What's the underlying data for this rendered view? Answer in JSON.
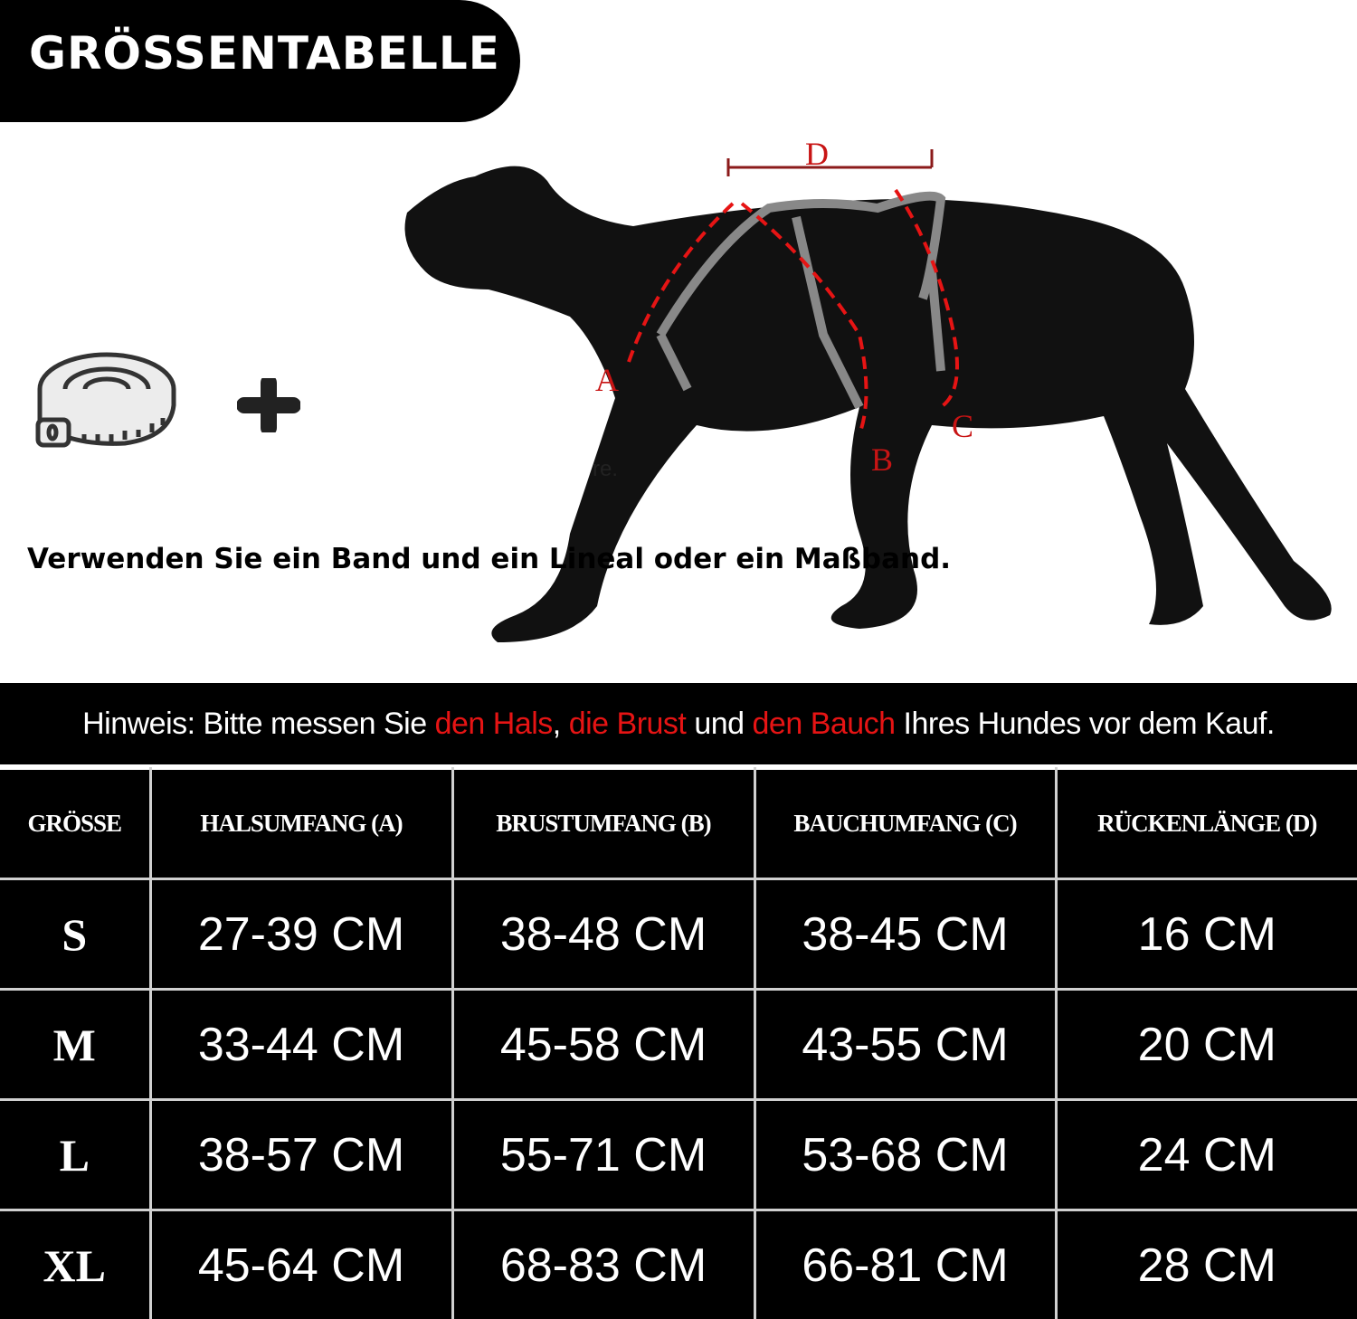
{
  "title": "GRÖSSENTABELLE",
  "usage_text": "Verwenden Sie ein Band und ein Lineal oder ein Maßband.",
  "stray_text": "re.",
  "icons": {
    "tape": "measuring-tape-icon",
    "plus": "plus-icon"
  },
  "diagram_labels": {
    "a": "A",
    "b": "B",
    "c": "C",
    "d": "D"
  },
  "hint": {
    "prefix": "Hinweis: Bitte messen Sie ",
    "neck": "den Hals",
    "sep1": ", ",
    "chest": "die Brust",
    "sep2": " und ",
    "belly": "den Bauch",
    "suffix": " Ihres Hundes vor dem Kauf."
  },
  "colors": {
    "accent_red": "#e61414",
    "background": "#000000",
    "text": "#ffffff"
  },
  "table": {
    "headers": [
      "GRÖSSE",
      "HALSUMFANG (A)",
      "BRUSTUMFANG (B)",
      "BAUCHUMFANG (C)",
      "RÜCKENLÄNGE (D)"
    ],
    "rows": [
      [
        "S",
        "27-39 CM",
        "38-48 CM",
        "38-45 CM",
        "16 CM"
      ],
      [
        "M",
        "33-44 CM",
        "45-58 CM",
        "43-55 CM",
        "20 CM"
      ],
      [
        "L",
        "38-57 CM",
        "55-71 CM",
        "53-68 CM",
        "24 CM"
      ],
      [
        "XL",
        "45-64 CM",
        "68-83 CM",
        "66-81 CM",
        "28 CM"
      ]
    ]
  }
}
